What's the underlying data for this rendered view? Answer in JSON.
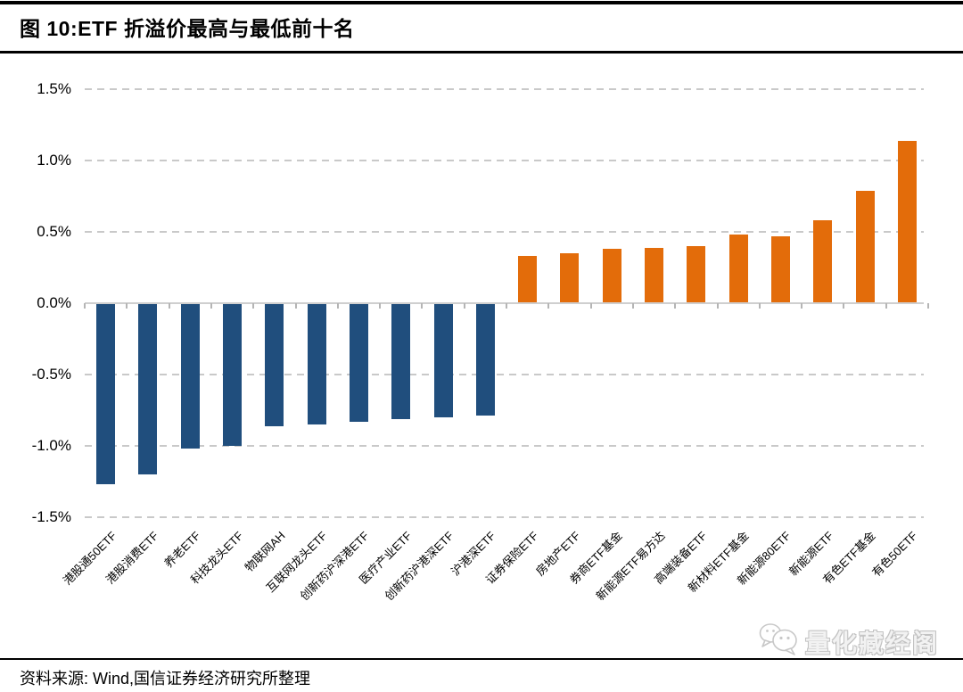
{
  "header": {
    "figure_title": "图 10:ETF 折溢价最高与最低前十名"
  },
  "footer": {
    "source": "资料来源: Wind,国信证券经济研究所整理",
    "watermark": "量化藏经阁",
    "watermark_icon": "wechat-bubbles-icon"
  },
  "colors": {
    "negative_bar": "#204E7D",
    "positive_bar": "#E36C0A",
    "gridline": "#C9C9C9",
    "axis_line": "#CFCFCF",
    "tick": "#B5B5B5",
    "rule": "#000000",
    "watermark_gray": "#C2C2C2"
  },
  "chart_data": {
    "type": "bar",
    "title": "ETF 折溢价最高与最低前十名",
    "units": "%",
    "xlabel": "",
    "ylabel": "",
    "ylim": [
      -1.5,
      1.5
    ],
    "grid": "horizontal-dashed",
    "legend": "none",
    "categories": [
      "港股通50ETF",
      "港股消费ETF",
      "养老ETF",
      "科技龙头ETF",
      "物联网AH",
      "互联网龙头ETF",
      "创新药沪深港ETF",
      "医疗产业ETF",
      "创新药沪港深ETF",
      "沪港深ETF",
      "证券保险ETF",
      "房地产ETF",
      "券商ETF基金",
      "新能源ETF易方达",
      "高端装备ETF",
      "新材料ETF基金",
      "新能源80ETF",
      "新能源ETF",
      "有色ETF基金",
      "有色50ETF"
    ],
    "values": [
      -1.27,
      -1.2,
      -1.02,
      -1.0,
      -0.86,
      -0.85,
      -0.83,
      -0.81,
      -0.8,
      -0.79,
      0.33,
      0.35,
      0.38,
      0.39,
      0.4,
      0.48,
      0.47,
      0.58,
      0.79,
      1.14
    ],
    "yticks": [
      1.5,
      1.0,
      0.5,
      0.0,
      -0.5,
      -1.0,
      -1.5
    ],
    "ytick_labels": [
      "1.5%",
      "1.0%",
      "0.5%",
      "0.0%",
      "-0.5%",
      "-1.0%",
      "-1.5%"
    ]
  }
}
